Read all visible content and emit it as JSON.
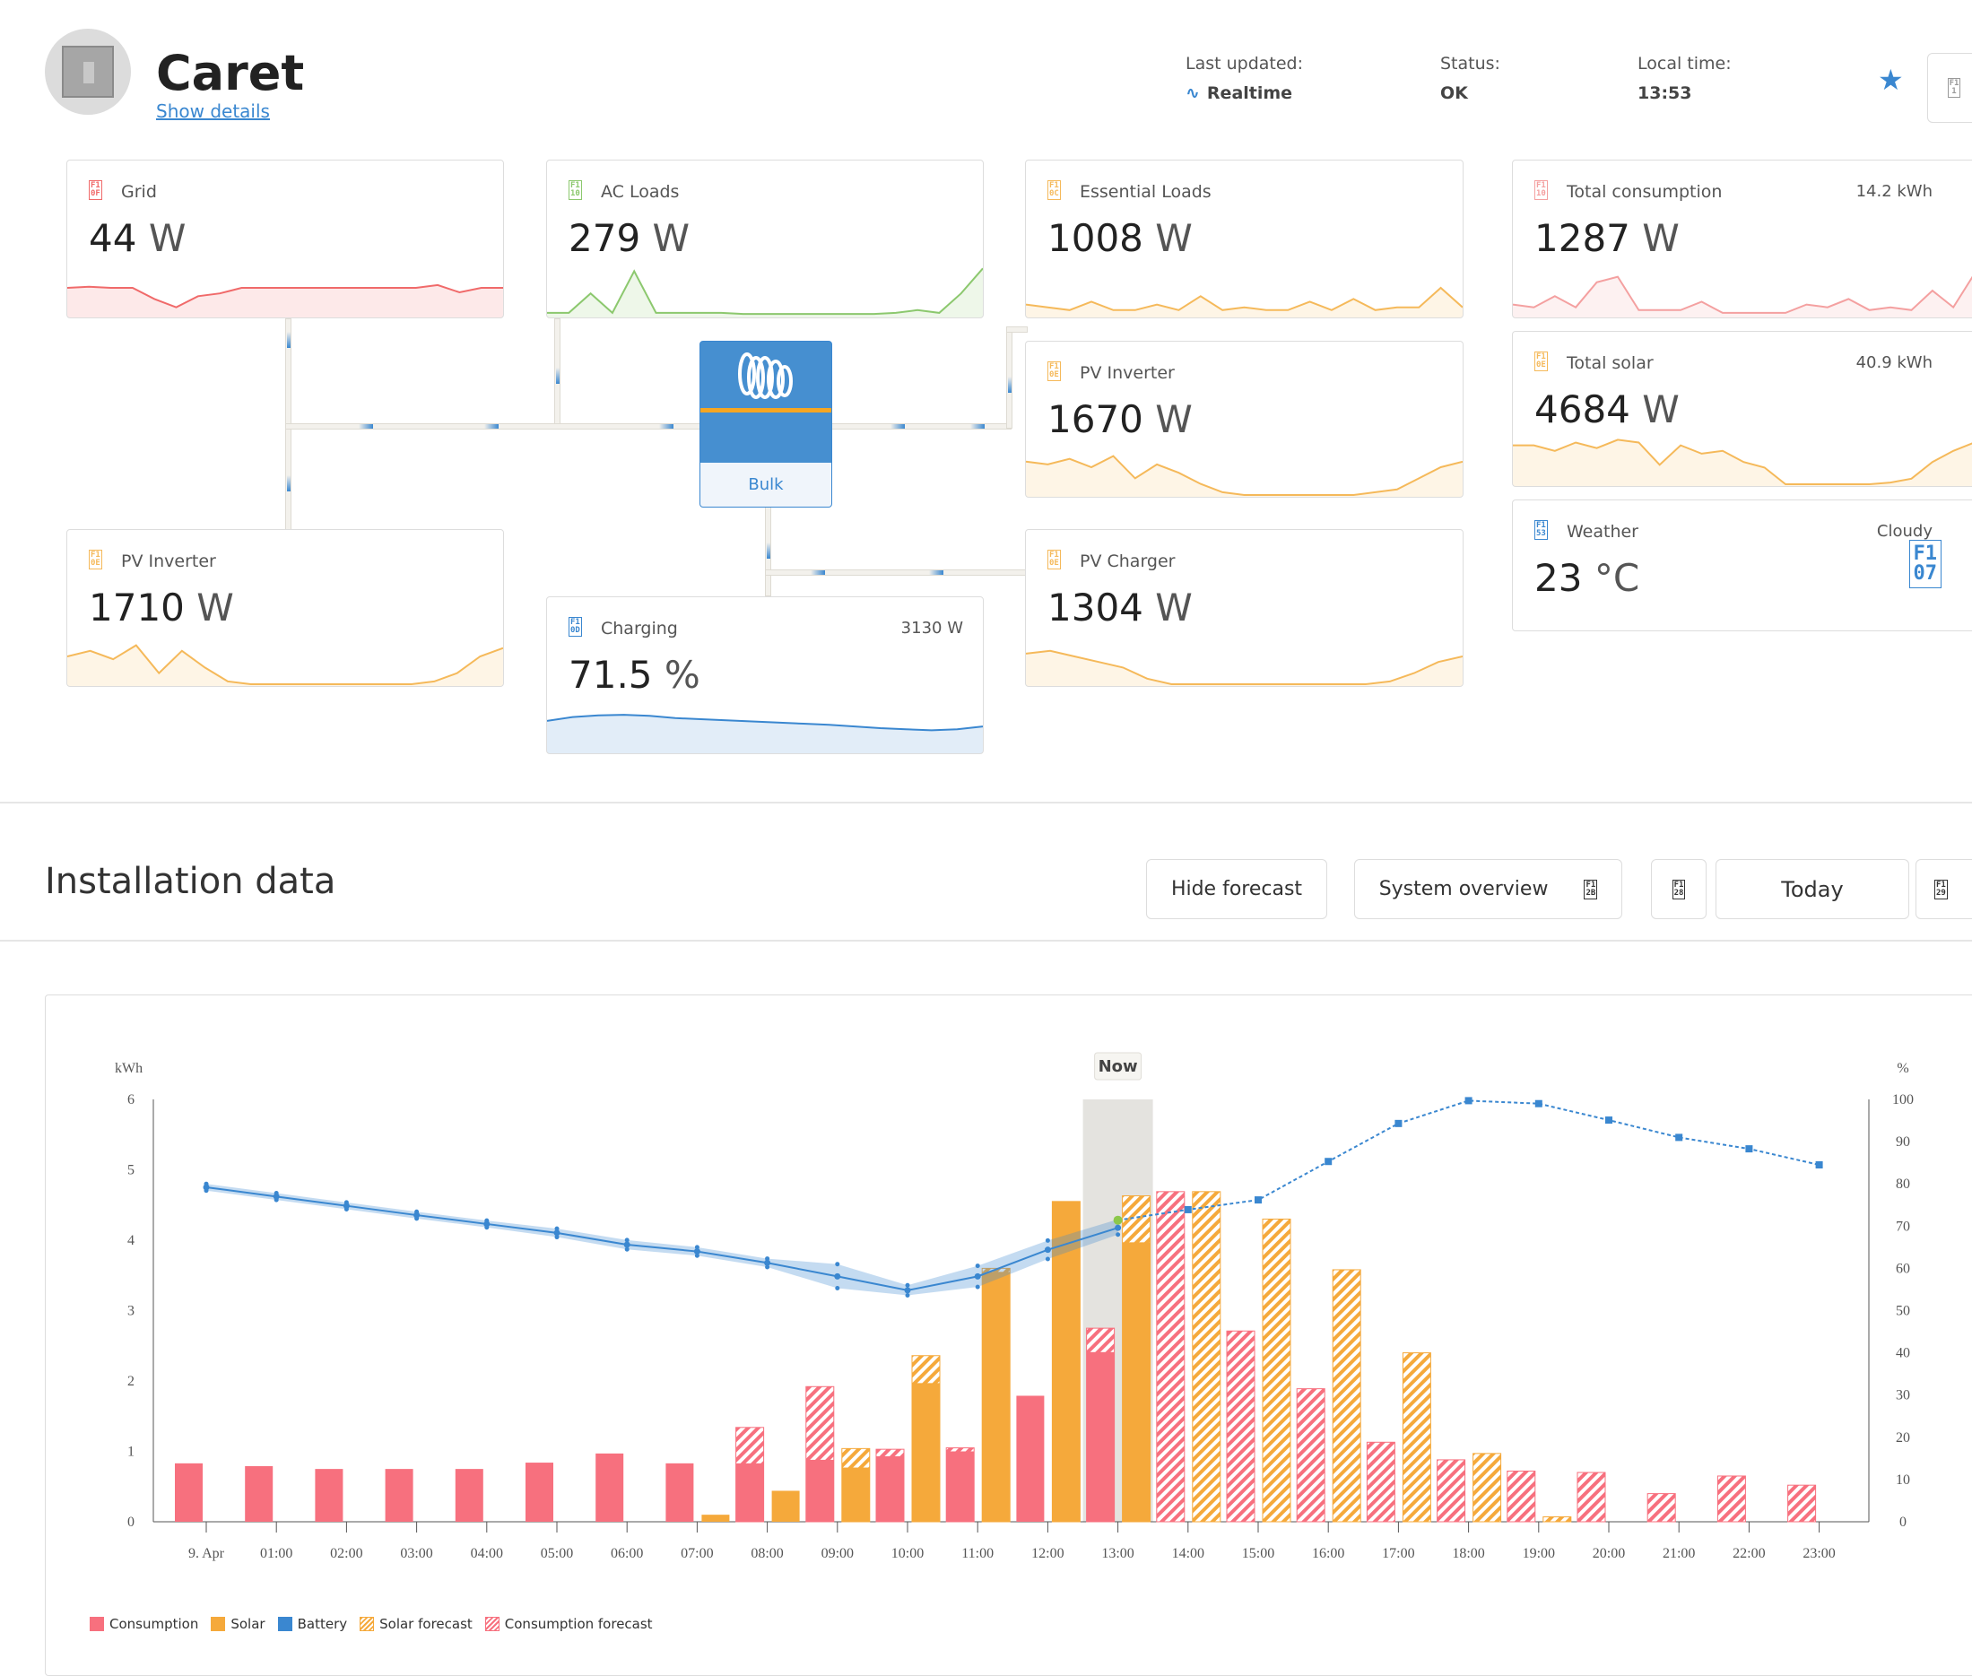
{
  "header": {
    "title": "Caret",
    "show_details": "Show details",
    "last_updated_label": "Last updated:",
    "last_updated_value": "Realtime",
    "status_label": "Status:",
    "status_value": "OK",
    "local_time_label": "Local time:",
    "local_time_value": "13:53",
    "menu_icon_code": "F1\n1"
  },
  "cards": {
    "grid": {
      "label": "Grid",
      "value": "44",
      "unit": "W",
      "icon": "F1\n0F",
      "color": "#f06a6a",
      "spark": [
        0.5,
        0.52,
        0.5,
        0.5,
        0.3,
        0.15,
        0.35,
        0.4,
        0.5,
        0.5,
        0.5,
        0.5,
        0.5,
        0.5,
        0.5,
        0.5,
        0.5,
        0.55,
        0.42,
        0.5,
        0.5
      ]
    },
    "ac_loads": {
      "label": "AC Loads",
      "value": "279",
      "unit": "W",
      "icon": "F1\n10",
      "color": "#8cc86e",
      "spark": [
        0.05,
        0.05,
        0.4,
        0.05,
        0.8,
        0.05,
        0.05,
        0.05,
        0.05,
        0.03,
        0.03,
        0.03,
        0.03,
        0.03,
        0.03,
        0.03,
        0.05,
        0.1,
        0.05,
        0.4,
        0.85
      ]
    },
    "essential_loads": {
      "label": "Essential Loads",
      "value": "1008",
      "unit": "W",
      "icon": "F1\n0C",
      "color": "#f5b95a",
      "spark": [
        0.2,
        0.15,
        0.1,
        0.25,
        0.1,
        0.1,
        0.2,
        0.1,
        0.35,
        0.1,
        0.15,
        0.1,
        0.1,
        0.25,
        0.1,
        0.3,
        0.1,
        0.15,
        0.15,
        0.5,
        0.15
      ]
    },
    "total_consumption": {
      "label": "Total consumption",
      "side": "14.2 kWh",
      "value": "1287",
      "unit": "W",
      "icon": "F1\n10",
      "color": "#f4a0a0",
      "spark": [
        0.2,
        0.15,
        0.35,
        0.15,
        0.6,
        0.7,
        0.1,
        0.1,
        0.1,
        0.25,
        0.05,
        0.05,
        0.05,
        0.05,
        0.2,
        0.15,
        0.3,
        0.1,
        0.15,
        0.1,
        0.45,
        0.15,
        0.75,
        0.75
      ]
    },
    "pv_inverter_right": {
      "label": "PV Inverter",
      "value": "1670",
      "unit": "W",
      "icon": "F1\n0E",
      "color": "#f5b95a",
      "spark": [
        0.6,
        0.55,
        0.65,
        0.5,
        0.7,
        0.3,
        0.55,
        0.4,
        0.2,
        0.05,
        0,
        0,
        0,
        0,
        0,
        0,
        0.05,
        0.1,
        0.3,
        0.5,
        0.6
      ]
    },
    "total_solar": {
      "label": "Total solar",
      "side": "40.9 kWh",
      "value": "4684",
      "unit": "W",
      "icon": "F1\n0E",
      "color": "#f5b95a",
      "spark": [
        0.7,
        0.7,
        0.6,
        0.75,
        0.65,
        0.8,
        0.75,
        0.35,
        0.7,
        0.55,
        0.6,
        0.4,
        0.3,
        0,
        0,
        0,
        0,
        0,
        0.03,
        0.1,
        0.4,
        0.6,
        0.75,
        0.8
      ]
    },
    "weather": {
      "label": "Weather",
      "side": "Cloudy",
      "value": "23",
      "unit": "°C",
      "icon": "F1\n53",
      "color": "#3a87d0",
      "weather_icon": "F1\n07"
    },
    "pv_inverter_left": {
      "label": "PV Inverter",
      "value": "1710",
      "unit": "W",
      "icon": "F1\n0E",
      "color": "#f5b95a",
      "spark": [
        0.5,
        0.6,
        0.45,
        0.7,
        0.2,
        0.6,
        0.3,
        0.05,
        0,
        0,
        0,
        0,
        0,
        0,
        0,
        0,
        0.05,
        0.2,
        0.5,
        0.65
      ]
    },
    "charging": {
      "label": "Charging",
      "side": "3130 W",
      "value": "71.5",
      "unit": "%",
      "icon": "F1\n0D",
      "color": "#3a87d0",
      "spark": [
        0.55,
        0.62,
        0.65,
        0.66,
        0.64,
        0.6,
        0.58,
        0.56,
        0.54,
        0.52,
        0.5,
        0.48,
        0.45,
        0.42,
        0.4,
        0.38,
        0.4,
        0.45
      ]
    },
    "pv_charger": {
      "label": "PV Charger",
      "value": "1304",
      "unit": "W",
      "icon": "F1\n0E",
      "color": "#f5b95a",
      "spark": [
        0.55,
        0.6,
        0.5,
        0.4,
        0.3,
        0.1,
        0,
        0,
        0,
        0,
        0,
        0,
        0,
        0,
        0,
        0.05,
        0.2,
        0.4,
        0.5
      ]
    }
  },
  "device": {
    "state": "Bulk"
  },
  "section": {
    "title": "Installation data",
    "hide_forecast": "Hide forecast",
    "system_overview": "System overview",
    "system_overview_icon": "F1\n2B",
    "calendar_icon": "F1\n28",
    "today": "Today",
    "next_icon": "F1\n29"
  },
  "chart_data": {
    "type": "bar",
    "now_label": "Now",
    "ylabel_left": "kWh",
    "ylabel_right": "%",
    "ylim_left": [
      0,
      6
    ],
    "ylim_right": [
      0,
      100
    ],
    "yticks_left": [
      "0",
      "1",
      "2",
      "3",
      "4",
      "5",
      "6"
    ],
    "yticks_right": [
      "0",
      "10",
      "20",
      "30",
      "40",
      "50",
      "60",
      "70",
      "80",
      "90",
      "100"
    ],
    "categories": [
      "9. Apr",
      "01:00",
      "02:00",
      "03:00",
      "04:00",
      "05:00",
      "06:00",
      "07:00",
      "08:00",
      "09:00",
      "10:00",
      "11:00",
      "12:00",
      "13:00",
      "14:00",
      "15:00",
      "16:00",
      "17:00",
      "18:00",
      "19:00",
      "20:00",
      "21:00",
      "22:00",
      "23:00"
    ],
    "now_index": 13,
    "series": [
      {
        "name": "Consumption",
        "color": "#f7707e",
        "values": [
          0.83,
          0.79,
          0.75,
          0.75,
          0.75,
          0.84,
          0.97,
          0.83,
          0.83,
          0.88,
          0.93,
          1.0,
          1.79,
          2.41,
          null,
          null,
          null,
          null,
          null,
          null,
          null,
          null,
          null,
          null
        ]
      },
      {
        "name": "Solar",
        "color": "#f5a93b",
        "values": [
          0,
          0,
          0,
          0,
          0,
          0,
          0,
          0.1,
          0.44,
          0.77,
          1.97,
          3.55,
          4.55,
          3.97,
          null,
          null,
          null,
          null,
          null,
          null,
          null,
          null,
          null,
          null
        ]
      },
      {
        "name": "Battery",
        "color": "#3a87d0",
        "axis": "right",
        "values": [
          79.2,
          77.0,
          74.8,
          72.6,
          70.5,
          68.4,
          65.6,
          64.0,
          61.3,
          58.1,
          54.8,
          58.1,
          64.4,
          69.6,
          73.9,
          76.2,
          85.3,
          94.3,
          99.7,
          99.0,
          95.1,
          91.0,
          88.3,
          84.5
        ],
        "current": 71.4
      },
      {
        "name": "Solar forecast",
        "color": "#f5a93b",
        "values": [
          null,
          null,
          null,
          null,
          null,
          null,
          null,
          null,
          null,
          1.04,
          2.36,
          3.6,
          4.55,
          4.63,
          4.69,
          4.3,
          3.58,
          2.4,
          0.97,
          0.07,
          null,
          null,
          null,
          null
        ]
      },
      {
        "name": "Consumption forecast",
        "color": "#f7707e",
        "values": [
          null,
          null,
          null,
          null,
          null,
          null,
          null,
          null,
          1.34,
          1.92,
          1.03,
          1.05,
          null,
          2.75,
          4.69,
          2.71,
          1.89,
          1.13,
          0.88,
          0.72,
          0.7,
          0.4,
          0.65,
          0.52
        ]
      }
    ],
    "battery_range": {
      "low": [
        78.4,
        76.2,
        74.0,
        71.8,
        69.7,
        67.4,
        64.5,
        63.0,
        60.3,
        55.3,
        53.6,
        55.6,
        62.2,
        68.0
      ],
      "high": [
        80.0,
        77.8,
        75.6,
        73.4,
        71.3,
        69.4,
        66.7,
        65.0,
        62.3,
        61.0,
        56.0,
        60.6,
        66.6,
        71.6
      ]
    },
    "legend": [
      "Consumption",
      "Solar",
      "Battery",
      "Solar forecast",
      "Consumption forecast"
    ],
    "legend_position": "bottom-left"
  }
}
